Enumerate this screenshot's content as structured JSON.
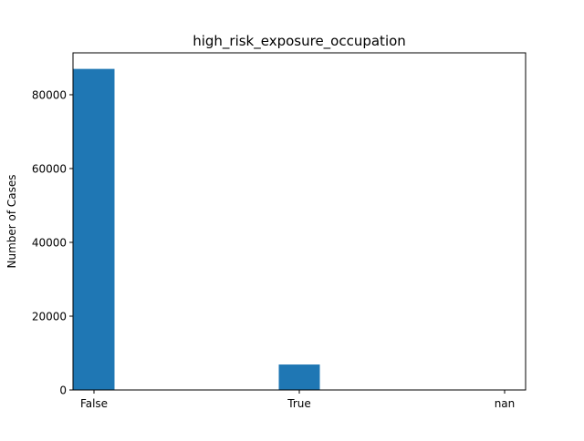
{
  "chart_data": {
    "type": "bar",
    "title": "high_risk_exposure_occupation",
    "xlabel": "",
    "ylabel": "Number of Cases",
    "categories": [
      "False",
      "True",
      "nan"
    ],
    "values": [
      87000,
      6900,
      0
    ],
    "yticks": [
      0,
      20000,
      40000,
      60000,
      80000
    ],
    "ytick_labels": [
      "0",
      "20000",
      "40000",
      "60000",
      "80000"
    ],
    "ylim": [
      0,
      91350
    ],
    "grid": false,
    "legend": "none",
    "bar_color": "#1f77b4"
  }
}
